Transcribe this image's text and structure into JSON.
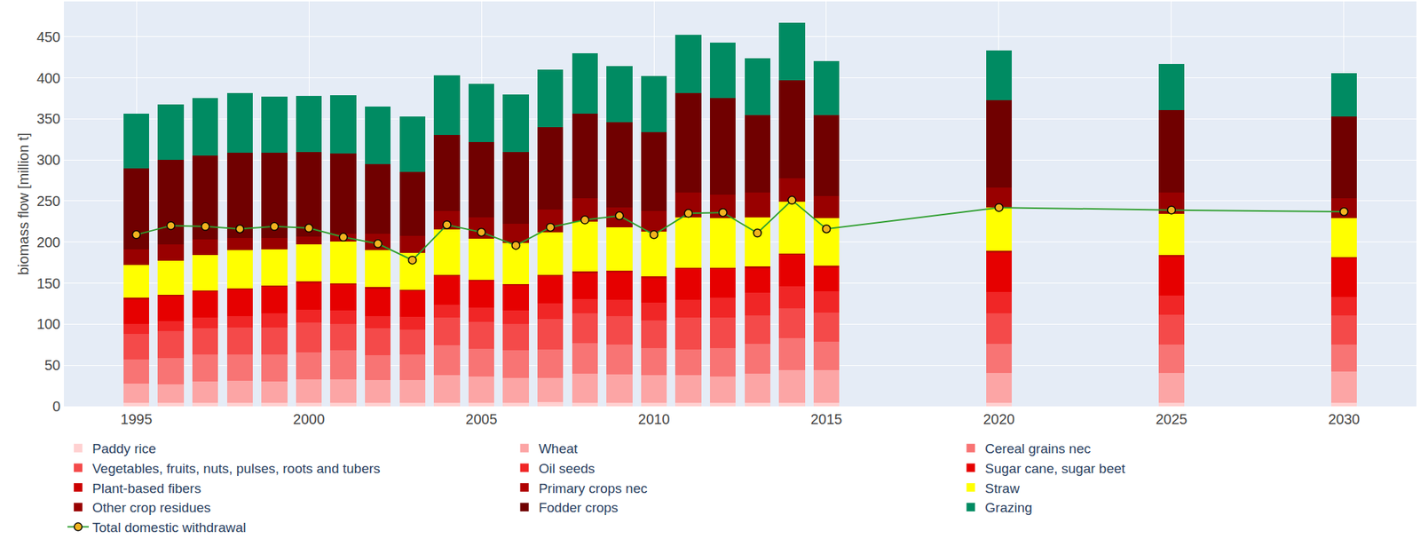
{
  "chart_data": {
    "type": "bar",
    "stacked": true,
    "grid": true,
    "legend": "bottom",
    "y_label": "biomass flow [million t]",
    "x": [
      1995,
      1996,
      1997,
      1998,
      1999,
      2000,
      2001,
      2002,
      2003,
      2004,
      2005,
      2006,
      2007,
      2008,
      2009,
      2010,
      2011,
      2012,
      2013,
      2014,
      2015,
      2020,
      2025,
      2030
    ],
    "xlim": [
      1992.9,
      2032.1
    ],
    "xticks": [
      1995,
      2000,
      2005,
      2010,
      2015,
      2020,
      2025,
      2030
    ],
    "ylim": [
      0,
      493
    ],
    "yticks": [
      0,
      50,
      100,
      150,
      200,
      250,
      300,
      350,
      400,
      450
    ],
    "series": [
      {
        "name": "Paddy rice",
        "type": "bar",
        "color": "#ffd1d1",
        "values": [
          4,
          4,
          4,
          4,
          4,
          4,
          4,
          4,
          4,
          4,
          4,
          4,
          5,
          4,
          4,
          4,
          4,
          4,
          4,
          4,
          4,
          4,
          4,
          4
        ]
      },
      {
        "name": "Wheat",
        "type": "bar",
        "color": "#fca5a5",
        "values": [
          24,
          23,
          26,
          27,
          26,
          29,
          29,
          28,
          28,
          34,
          32,
          31,
          30,
          36,
          35,
          34,
          34,
          32,
          36,
          40,
          40,
          37,
          37,
          38
        ]
      },
      {
        "name": "Cereal grains nec",
        "type": "bar",
        "color": "#f87474",
        "values": [
          29,
          32,
          33,
          32,
          33,
          33,
          35,
          30,
          31,
          36,
          34,
          33,
          34,
          37,
          36,
          33,
          31,
          35,
          36,
          39,
          35,
          35,
          34,
          33
        ]
      },
      {
        "name": "Vegetables, fruits, nuts, pulses, roots and tubers",
        "type": "bar",
        "color": "#f44a4a",
        "values": [
          31,
          33,
          32,
          33,
          33,
          36,
          32,
          33,
          30,
          34,
          33,
          32,
          37,
          36,
          35,
          34,
          39,
          37,
          35,
          36,
          35,
          37,
          37,
          36
        ]
      },
      {
        "name": "Oil seeds",
        "type": "bar",
        "color": "#f02626",
        "values": [
          12,
          12,
          13,
          14,
          17,
          16,
          17,
          15,
          16,
          16,
          17,
          17,
          19,
          18,
          20,
          21,
          22,
          24,
          27,
          27,
          26,
          26,
          23,
          22
        ]
      },
      {
        "name": "Sugar cane, sugar beet",
        "type": "bar",
        "color": "#e60000",
        "values": [
          30,
          30,
          31,
          32,
          32,
          32,
          31,
          33,
          31,
          34,
          32,
          30,
          33,
          31,
          33,
          30,
          37,
          35,
          30,
          38,
          29,
          48,
          47,
          47
        ]
      },
      {
        "name": "Plant-based fibers",
        "type": "bar",
        "color": "#cc0000",
        "values": [
          1,
          1,
          1,
          1,
          1,
          1,
          1,
          1,
          1,
          1,
          1,
          1,
          1,
          1,
          1,
          1,
          1,
          1,
          1,
          1,
          1,
          1,
          1,
          1
        ]
      },
      {
        "name": "Primary crops nec",
        "type": "bar",
        "color": "#b00000",
        "values": [
          1,
          1,
          1,
          1,
          1,
          1,
          1,
          1,
          1,
          1,
          1,
          1,
          1,
          1,
          1,
          1,
          1,
          1,
          1,
          1,
          1,
          1,
          1,
          1
        ]
      },
      {
        "name": "Straw",
        "type": "bar",
        "color": "#ffff00",
        "values": [
          40,
          41,
          43,
          46,
          44,
          45,
          51,
          45,
          45,
          55,
          50,
          50,
          52,
          61,
          53,
          55,
          61,
          60,
          60,
          63,
          58,
          53,
          50,
          47
        ]
      },
      {
        "name": "Other crop residues",
        "type": "bar",
        "color": "#990000",
        "values": [
          19,
          20,
          19,
          15,
          14,
          10,
          9,
          20,
          21,
          23,
          26,
          23,
          28,
          28,
          24,
          25,
          30,
          29,
          30,
          29,
          27,
          24,
          26,
          24
        ]
      },
      {
        "name": "Fodder crops",
        "type": "bar",
        "color": "#700000",
        "values": [
          99,
          103,
          102,
          104,
          104,
          103,
          98,
          85,
          77,
          92,
          92,
          88,
          100,
          103,
          104,
          96,
          121,
          117,
          95,
          119,
          99,
          107,
          101,
          100
        ]
      },
      {
        "name": "Grazing",
        "type": "bar",
        "color": "#008b62",
        "values": [
          66,
          68,
          70,
          72,
          68,
          68,
          71,
          70,
          68,
          73,
          71,
          70,
          70,
          74,
          68,
          68,
          71,
          68,
          69,
          70,
          65,
          60,
          56,
          53
        ]
      },
      {
        "name": "Total domestic withdrawal",
        "type": "line",
        "marker": "circle",
        "color": "#2e9e2e",
        "values": [
          209,
          220,
          219,
          216,
          219,
          217,
          206,
          198,
          178,
          221,
          212,
          196,
          218,
          227,
          232,
          209,
          235,
          236,
          211,
          251,
          216,
          242,
          239,
          237
        ]
      }
    ]
  }
}
